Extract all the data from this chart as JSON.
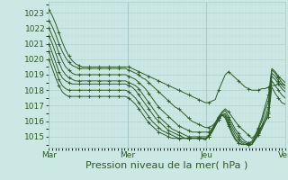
{
  "background_color": "#cce8e4",
  "grid_major_color": "#aaccc8",
  "grid_minor_color": "#bbdcd8",
  "line_color": "#2d5a27",
  "xlabel": "Pression niveau de la mer( hPa )",
  "xlabel_fontsize": 8,
  "tick_fontsize": 6.5,
  "ylim": [
    1014.3,
    1023.7
  ],
  "yticks": [
    1015,
    1016,
    1017,
    1018,
    1019,
    1020,
    1021,
    1022,
    1023
  ],
  "day_labels": [
    "Mar",
    "Mer",
    "Jeu",
    "Ven"
  ],
  "day_positions": [
    0,
    24,
    48,
    72
  ],
  "xlim": [
    0,
    72
  ],
  "series": [
    [
      1023.2,
      1022.8,
      1022.3,
      1021.7,
      1021.1,
      1020.6,
      1020.2,
      1019.9,
      1019.7,
      1019.6,
      1019.5,
      1019.5,
      1019.5,
      1019.5,
      1019.5,
      1019.5,
      1019.5,
      1019.5,
      1019.5,
      1019.5,
      1019.5,
      1019.5,
      1019.5,
      1019.5,
      1019.5,
      1019.4,
      1019.3,
      1019.2,
      1019.1,
      1019.0,
      1018.9,
      1018.8,
      1018.7,
      1018.6,
      1018.5,
      1018.4,
      1018.3,
      1018.2,
      1018.1,
      1018.0,
      1017.9,
      1017.8,
      1017.7,
      1017.6,
      1017.5,
      1017.4,
      1017.3,
      1017.2,
      1017.2,
      1017.3,
      1017.4,
      1018.0,
      1018.5,
      1019.0,
      1019.2,
      1019.0,
      1018.8,
      1018.6,
      1018.4,
      1018.2,
      1018.1,
      1018.0,
      1018.0,
      1018.0,
      1018.1,
      1018.1,
      1018.2,
      1018.3,
      1018.3,
      1018.4,
      1018.4,
      1018.3
    ],
    [
      1022.5,
      1022.1,
      1021.6,
      1021.0,
      1020.5,
      1020.1,
      1019.8,
      1019.6,
      1019.5,
      1019.4,
      1019.4,
      1019.4,
      1019.4,
      1019.4,
      1019.4,
      1019.4,
      1019.4,
      1019.4,
      1019.4,
      1019.4,
      1019.4,
      1019.4,
      1019.4,
      1019.4,
      1019.3,
      1019.2,
      1019.1,
      1019.0,
      1018.8,
      1018.7,
      1018.5,
      1018.3,
      1018.1,
      1017.9,
      1017.7,
      1017.5,
      1017.3,
      1017.1,
      1016.9,
      1016.8,
      1016.6,
      1016.4,
      1016.2,
      1016.0,
      1015.9,
      1015.8,
      1015.7,
      1015.6,
      1015.6,
      1015.7,
      1015.9,
      1016.3,
      1016.6,
      1016.8,
      1016.6,
      1016.3,
      1016.0,
      1015.7,
      1015.5,
      1015.3,
      1015.1,
      1014.9,
      1015.1,
      1015.4,
      1015.7,
      1016.0,
      1016.3,
      1018.2,
      1017.8,
      1017.5,
      1017.2,
      1017.1
    ],
    [
      1022.0,
      1021.5,
      1021.0,
      1020.4,
      1019.9,
      1019.5,
      1019.3,
      1019.1,
      1019.0,
      1019.0,
      1019.0,
      1019.0,
      1019.0,
      1019.0,
      1019.0,
      1019.0,
      1019.0,
      1019.0,
      1019.0,
      1019.0,
      1019.0,
      1019.0,
      1019.0,
      1019.0,
      1018.9,
      1018.8,
      1018.7,
      1018.5,
      1018.3,
      1018.1,
      1017.8,
      1017.5,
      1017.2,
      1016.9,
      1016.7,
      1016.5,
      1016.3,
      1016.1,
      1015.9,
      1015.7,
      1015.6,
      1015.5,
      1015.4,
      1015.3,
      1015.3,
      1015.3,
      1015.3,
      1015.3,
      1015.3,
      1015.5,
      1015.8,
      1016.2,
      1016.5,
      1016.7,
      1016.3,
      1015.9,
      1015.5,
      1015.2,
      1014.9,
      1014.7,
      1014.6,
      1014.6,
      1014.9,
      1015.2,
      1015.6,
      1016.0,
      1016.5,
      1018.6,
      1018.3,
      1018.0,
      1017.7,
      1017.5
    ],
    [
      1021.5,
      1021.0,
      1020.4,
      1019.8,
      1019.3,
      1019.0,
      1018.8,
      1018.7,
      1018.6,
      1018.6,
      1018.6,
      1018.6,
      1018.6,
      1018.6,
      1018.6,
      1018.6,
      1018.6,
      1018.6,
      1018.6,
      1018.6,
      1018.6,
      1018.6,
      1018.6,
      1018.6,
      1018.5,
      1018.4,
      1018.3,
      1018.1,
      1017.8,
      1017.5,
      1017.2,
      1016.9,
      1016.6,
      1016.3,
      1016.1,
      1015.9,
      1015.7,
      1015.5,
      1015.4,
      1015.3,
      1015.2,
      1015.1,
      1015.0,
      1015.0,
      1015.0,
      1015.0,
      1015.0,
      1015.0,
      1015.0,
      1015.3,
      1015.7,
      1016.1,
      1016.4,
      1016.5,
      1016.1,
      1015.7,
      1015.3,
      1015.0,
      1014.7,
      1014.6,
      1014.5,
      1014.5,
      1014.8,
      1015.1,
      1015.5,
      1016.0,
      1016.6,
      1018.9,
      1018.7,
      1018.4,
      1018.1,
      1017.9
    ],
    [
      1021.0,
      1020.4,
      1019.8,
      1019.2,
      1018.8,
      1018.6,
      1018.5,
      1018.4,
      1018.4,
      1018.4,
      1018.4,
      1018.4,
      1018.4,
      1018.4,
      1018.4,
      1018.4,
      1018.4,
      1018.4,
      1018.4,
      1018.4,
      1018.4,
      1018.4,
      1018.4,
      1018.4,
      1018.3,
      1018.2,
      1018.0,
      1017.7,
      1017.4,
      1017.1,
      1016.8,
      1016.5,
      1016.2,
      1016.0,
      1015.8,
      1015.6,
      1015.4,
      1015.3,
      1015.2,
      1015.1,
      1015.0,
      1014.9,
      1014.9,
      1014.9,
      1014.9,
      1014.9,
      1014.9,
      1014.9,
      1015.0,
      1015.3,
      1015.7,
      1016.1,
      1016.4,
      1016.4,
      1015.9,
      1015.5,
      1015.1,
      1014.8,
      1014.6,
      1014.5,
      1014.5,
      1014.5,
      1014.9,
      1015.3,
      1015.7,
      1016.3,
      1016.9,
      1019.1,
      1018.9,
      1018.6,
      1018.3,
      1018.1
    ],
    [
      1020.5,
      1019.9,
      1019.3,
      1018.7,
      1018.3,
      1018.1,
      1018.0,
      1018.0,
      1018.0,
      1018.0,
      1018.0,
      1018.0,
      1018.0,
      1018.0,
      1018.0,
      1018.0,
      1018.0,
      1018.0,
      1018.0,
      1018.0,
      1018.0,
      1018.0,
      1018.0,
      1018.0,
      1017.9,
      1017.7,
      1017.5,
      1017.2,
      1016.9,
      1016.6,
      1016.3,
      1016.0,
      1015.8,
      1015.6,
      1015.4,
      1015.3,
      1015.2,
      1015.1,
      1015.0,
      1014.9,
      1014.9,
      1014.9,
      1014.9,
      1014.9,
      1014.9,
      1014.9,
      1014.9,
      1014.8,
      1015.0,
      1015.4,
      1015.8,
      1016.2,
      1016.4,
      1016.3,
      1015.8,
      1015.3,
      1014.9,
      1014.6,
      1014.5,
      1014.5,
      1014.5,
      1014.5,
      1015.0,
      1015.5,
      1016.0,
      1016.7,
      1017.3,
      1019.3,
      1019.1,
      1018.8,
      1018.5,
      1018.3
    ],
    [
      1020.0,
      1019.4,
      1018.8,
      1018.3,
      1017.9,
      1017.7,
      1017.6,
      1017.6,
      1017.6,
      1017.6,
      1017.6,
      1017.6,
      1017.6,
      1017.6,
      1017.6,
      1017.6,
      1017.6,
      1017.6,
      1017.6,
      1017.6,
      1017.6,
      1017.6,
      1017.6,
      1017.6,
      1017.5,
      1017.3,
      1017.1,
      1016.8,
      1016.5,
      1016.2,
      1015.9,
      1015.7,
      1015.5,
      1015.3,
      1015.2,
      1015.1,
      1015.0,
      1014.9,
      1014.9,
      1014.9,
      1014.9,
      1014.9,
      1014.9,
      1014.9,
      1014.9,
      1014.9,
      1014.9,
      1014.8,
      1015.1,
      1015.5,
      1015.9,
      1016.2,
      1016.4,
      1016.2,
      1015.7,
      1015.2,
      1014.8,
      1014.6,
      1014.5,
      1014.5,
      1014.6,
      1014.7,
      1015.1,
      1015.6,
      1016.2,
      1017.0,
      1017.7,
      1019.4,
      1019.2,
      1018.9,
      1018.7,
      1018.5
    ]
  ]
}
